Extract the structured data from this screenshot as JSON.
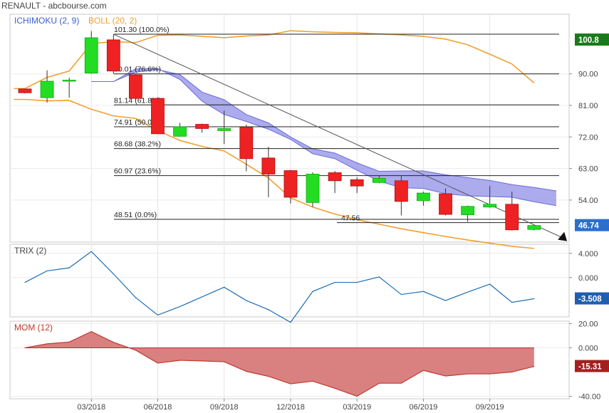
{
  "header": {
    "title": "RENAULT - abcbourse.com"
  },
  "chart_data": [
    {
      "type": "candlestick",
      "legend": [
        {
          "name": "ICHIMOKU (2, 9)",
          "color": "#3a5fcd"
        },
        {
          "name": "BOLL (20, 2)",
          "color": "#f0a030"
        }
      ],
      "ylim": [
        42,
        107
      ],
      "yticks": [
        "90.00",
        "81.00",
        "72.00",
        "63.00",
        "54.00"
      ],
      "last_price": "100.8",
      "current_value": "46.74",
      "x_labels": [
        "03/2018",
        "06/2018",
        "09/2018",
        "12/2018",
        "03/2019",
        "06/2019",
        "09/2019"
      ],
      "candles": [
        {
          "x": 0,
          "o": 85.7,
          "c": 84.6,
          "h": 85.7,
          "l": 84.4
        },
        {
          "x": 1,
          "o": 83.2,
          "c": 87.9,
          "h": 91.0,
          "l": 81.8
        },
        {
          "x": 2,
          "o": 88.0,
          "c": 88.2,
          "h": 88.9,
          "l": 83.2
        },
        {
          "x": 3,
          "o": 90.2,
          "c": 100.3,
          "h": 102.2,
          "l": 90.0
        },
        {
          "x": 4,
          "o": 99.7,
          "c": 90.8,
          "h": 101.3,
          "l": 90.0
        },
        {
          "x": 5,
          "o": 89.7,
          "c": 83.0,
          "h": 89.9,
          "l": 82.0
        },
        {
          "x": 6,
          "o": 83.0,
          "c": 72.9,
          "h": 83.3,
          "l": 72.9
        },
        {
          "x": 7,
          "o": 72.2,
          "c": 74.9,
          "h": 76.0,
          "l": 72.2
        },
        {
          "x": 8,
          "o": 75.6,
          "c": 74.4,
          "h": 75.8,
          "l": 73.2
        },
        {
          "x": 9,
          "o": 73.8,
          "c": 74.4,
          "h": 79.5,
          "l": 70.0
        },
        {
          "x": 10,
          "o": 74.8,
          "c": 65.8,
          "h": 75.5,
          "l": 62.2
        },
        {
          "x": 11,
          "o": 66.0,
          "c": 61.4,
          "h": 69.2,
          "l": 54.8
        },
        {
          "x": 12,
          "o": 62.4,
          "c": 54.8,
          "h": 62.6,
          "l": 53.0
        },
        {
          "x": 13,
          "o": 53.3,
          "c": 61.4,
          "h": 61.9,
          "l": 52.0
        },
        {
          "x": 14,
          "o": 61.8,
          "c": 59.5,
          "h": 62.3,
          "l": 56.0
        },
        {
          "x": 15,
          "o": 59.8,
          "c": 58.0,
          "h": 60.5,
          "l": 56.0
        },
        {
          "x": 16,
          "o": 59.0,
          "c": 60.2,
          "h": 61.0,
          "l": 58.8
        },
        {
          "x": 17,
          "o": 59.5,
          "c": 53.6,
          "h": 61.0,
          "l": 49.6
        },
        {
          "x": 18,
          "o": 53.8,
          "c": 56.0,
          "h": 56.4,
          "l": 52.4
        },
        {
          "x": 19,
          "o": 55.8,
          "c": 49.9,
          "h": 57.3,
          "l": 49.6
        },
        {
          "x": 20,
          "o": 49.8,
          "c": 52.2,
          "h": 52.4,
          "l": 47.8
        },
        {
          "x": 21,
          "o": 52.0,
          "c": 52.8,
          "h": 58.0,
          "l": 51.8
        },
        {
          "x": 22,
          "o": 52.8,
          "c": 45.5,
          "h": 56.4,
          "l": 45.3
        },
        {
          "x": 23,
          "o": 45.6,
          "c": 46.74,
          "h": 46.8,
          "l": 45.3
        }
      ],
      "bollinger_upper": [
        {
          "x": -0.5,
          "y": 85.8
        },
        {
          "x": 0,
          "y": 85.8
        },
        {
          "x": 1,
          "y": 89.0
        },
        {
          "x": 2,
          "y": 90.8
        },
        {
          "x": 3,
          "y": 98.6
        },
        {
          "x": 4,
          "y": 99.2
        },
        {
          "x": 5,
          "y": 98.9
        },
        {
          "x": 6,
          "y": 101.0
        },
        {
          "x": 7,
          "y": 101.1
        },
        {
          "x": 8,
          "y": 100.7
        },
        {
          "x": 9,
          "y": 100.3
        },
        {
          "x": 10,
          "y": 100.8
        },
        {
          "x": 11,
          "y": 101.1
        },
        {
          "x": 12,
          "y": 102.3
        },
        {
          "x": 13,
          "y": 102.0
        },
        {
          "x": 14,
          "y": 101.8
        },
        {
          "x": 15,
          "y": 101.7
        },
        {
          "x": 16,
          "y": 101.4
        },
        {
          "x": 17,
          "y": 101.1
        },
        {
          "x": 18,
          "y": 100.7
        },
        {
          "x": 19,
          "y": 99.9
        },
        {
          "x": 20,
          "y": 98.3
        },
        {
          "x": 21,
          "y": 95.6
        },
        {
          "x": 22,
          "y": 92.8
        },
        {
          "x": 23,
          "y": 87.4
        }
      ],
      "bollinger_lower": [
        {
          "x": -0.5,
          "y": 82.7
        },
        {
          "x": 0,
          "y": 82.7
        },
        {
          "x": 1,
          "y": 82.3
        },
        {
          "x": 2,
          "y": 82.4
        },
        {
          "x": 3,
          "y": 79.9
        },
        {
          "x": 4,
          "y": 78.0
        },
        {
          "x": 5,
          "y": 77.3
        },
        {
          "x": 6,
          "y": 73.8
        },
        {
          "x": 7,
          "y": 71.0
        },
        {
          "x": 8,
          "y": 69.3
        },
        {
          "x": 9,
          "y": 68.0
        },
        {
          "x": 10,
          "y": 64.2
        },
        {
          "x": 11,
          "y": 60.3
        },
        {
          "x": 12,
          "y": 54.6
        },
        {
          "x": 13,
          "y": 52.0
        },
        {
          "x": 14,
          "y": 50.0
        },
        {
          "x": 15,
          "y": 48.4
        },
        {
          "x": 16,
          "y": 47.1
        },
        {
          "x": 17,
          "y": 45.8
        },
        {
          "x": 18,
          "y": 44.7
        },
        {
          "x": 19,
          "y": 43.6
        },
        {
          "x": 20,
          "y": 42.6
        },
        {
          "x": 21,
          "y": 41.7
        },
        {
          "x": 22,
          "y": 40.8
        },
        {
          "x": 23,
          "y": 40.2
        }
      ],
      "ichimoku_span_a": [
        {
          "x": 3,
          "y": 87.8
        },
        {
          "x": 4,
          "y": 87.8
        },
        {
          "x": 5,
          "y": 90.5
        },
        {
          "x": 6,
          "y": 91.2
        },
        {
          "x": 7,
          "y": 89.8
        },
        {
          "x": 8,
          "y": 84.8
        },
        {
          "x": 9,
          "y": 82.6
        },
        {
          "x": 10,
          "y": 78.4
        },
        {
          "x": 11,
          "y": 76.0
        },
        {
          "x": 12,
          "y": 72.0
        },
        {
          "x": 13,
          "y": 68.6
        },
        {
          "x": 14,
          "y": 67.4
        },
        {
          "x": 15,
          "y": 64.6
        },
        {
          "x": 16,
          "y": 62.2
        },
        {
          "x": 17,
          "y": 62.3
        },
        {
          "x": 18,
          "y": 62.3
        },
        {
          "x": 19,
          "y": 61.2
        },
        {
          "x": 20,
          "y": 60.4
        },
        {
          "x": 21,
          "y": 59.6
        },
        {
          "x": 22,
          "y": 58.4
        },
        {
          "x": 23,
          "y": 57.6
        },
        {
          "x": 24,
          "y": 56.6
        }
      ],
      "ichimoku_span_b": [
        {
          "x": 3,
          "y": 87.8
        },
        {
          "x": 4,
          "y": 87.8
        },
        {
          "x": 5,
          "y": 91.4
        },
        {
          "x": 6,
          "y": 91.5
        },
        {
          "x": 7,
          "y": 88.4
        },
        {
          "x": 8,
          "y": 82.2
        },
        {
          "x": 9,
          "y": 78.4
        },
        {
          "x": 10,
          "y": 76.4
        },
        {
          "x": 11,
          "y": 74.2
        },
        {
          "x": 12,
          "y": 71.3
        },
        {
          "x": 13,
          "y": 67.2
        },
        {
          "x": 14,
          "y": 65.8
        },
        {
          "x": 15,
          "y": 62.5
        },
        {
          "x": 16,
          "y": 59.4
        },
        {
          "x": 17,
          "y": 57.5
        },
        {
          "x": 18,
          "y": 57.3
        },
        {
          "x": 19,
          "y": 55.8
        },
        {
          "x": 20,
          "y": 55.2
        },
        {
          "x": 21,
          "y": 55.0
        },
        {
          "x": 22,
          "y": 54.8
        },
        {
          "x": 23,
          "y": 53.5
        },
        {
          "x": 24,
          "y": 52.4
        }
      ],
      "fibonacci": [
        {
          "label": "101.30  (100.0%)",
          "value": 101.3
        },
        {
          "label": "90.01  (76.6%)",
          "value": 90.0
        },
        {
          "label": "81.14  (61.8%)",
          "value": 81.14
        },
        {
          "label": "74.91  (50.0%)",
          "value": 74.91
        },
        {
          "label": "68.68  (38.2%)",
          "value": 68.68
        },
        {
          "label": "60.97  (23.6%)",
          "value": 60.97
        },
        {
          "label": "48.51  (0.0%)",
          "value": 48.51
        }
      ],
      "support_label": "47.56",
      "support_value": 47.56,
      "trendline": [
        {
          "x": 4,
          "y": 101.3
        },
        {
          "x": 24.2,
          "y": 43.5
        }
      ]
    },
    {
      "type": "line",
      "legend": [
        {
          "name": "TRIX (2)",
          "color": "#1f6fb5"
        }
      ],
      "ylim": [
        -6.5,
        5.5
      ],
      "yticks": [
        "4.000",
        "0.000"
      ],
      "current_value": "-3.508",
      "values": [
        -0.8,
        1.1,
        1.6,
        4.3,
        0.6,
        -3.3,
        -6.2,
        -4.8,
        -3.2,
        -1.6,
        -3.8,
        -5.3,
        -7.4,
        -2.3,
        -0.8,
        -0.8,
        0.1,
        -2.8,
        -2.3,
        -3.8,
        -2.4,
        -1.1,
        -4.1,
        -3.5
      ]
    },
    {
      "type": "area",
      "legend": [
        {
          "name": "MOM (12)",
          "color": "#c0392b"
        }
      ],
      "ylim": [
        -42,
        22
      ],
      "yticks": [
        "20.00",
        "0.000",
        "-40.00"
      ],
      "current_value": "-15.31",
      "values": [
        0,
        3.3,
        4.8,
        13.4,
        4.6,
        -1.9,
        -12.6,
        -10.3,
        -10.8,
        -11.5,
        -19.4,
        -23.5,
        -29.7,
        -27.5,
        -33.4,
        -39.9,
        -29.2,
        -29.2,
        -18.6,
        -23.2,
        -21.5,
        -21.5,
        -19.9,
        -15.31
      ]
    }
  ]
}
